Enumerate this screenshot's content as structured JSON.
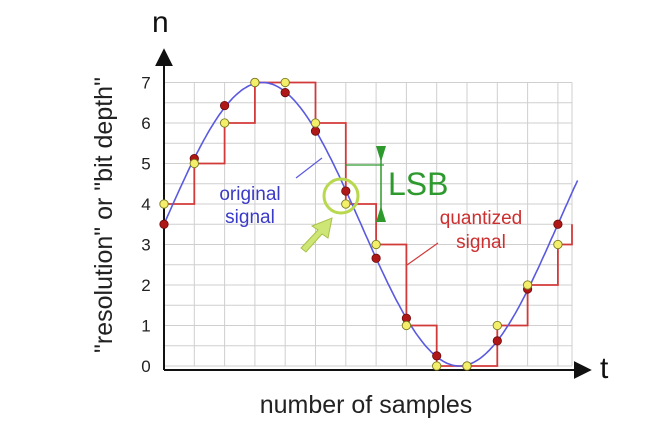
{
  "labels": {
    "y_axis_letter": "n",
    "x_axis_letter": "t",
    "y_axis_title": "\"resolution\" or \"bit depth\"",
    "x_axis_title": "number of samples",
    "lsb": "LSB",
    "original_line1": "original",
    "original_line2": "signal",
    "quantized_line1": "quantized",
    "quantized_line2": "signal"
  },
  "colors": {
    "grid": "#cfcfcf",
    "original_signal": "#5a5ae0",
    "quantized_signal": "#d23a3a",
    "sample_dot": "#b01818",
    "quantized_dot": "#f4ef6a",
    "lsb_marker": "#2e9a2e",
    "highlight_arrow": "#cde675"
  },
  "chart_data": {
    "type": "line",
    "ylim": [
      0,
      7
    ],
    "y_ticks": [
      "0",
      "1",
      "2",
      "3",
      "4",
      "5",
      "6",
      "7"
    ],
    "sample_count": 14,
    "series": [
      {
        "name": "original signal",
        "values": [
          3.5,
          5.12,
          6.43,
          7.0,
          6.75,
          5.8,
          4.32,
          2.66,
          1.18,
          0.25,
          0.0,
          0.62,
          1.9,
          3.5
        ]
      },
      {
        "name": "quantized signal",
        "values": [
          4,
          5,
          6,
          7,
          7,
          6,
          4,
          3,
          1,
          0,
          0,
          1,
          2,
          3
        ]
      }
    ]
  }
}
